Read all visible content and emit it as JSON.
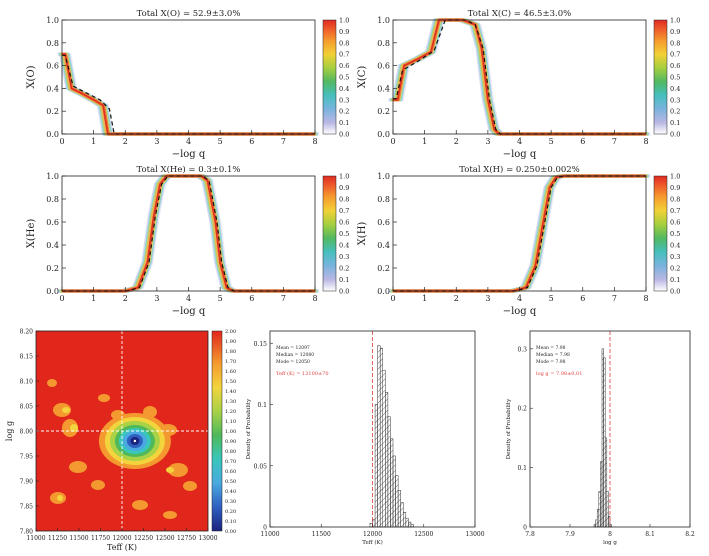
{
  "colorbar_ticks": [
    "0.0",
    "0.1",
    "0.2",
    "0.3",
    "0.4",
    "0.5",
    "0.6",
    "0.7",
    "0.8",
    "0.9",
    "1.0"
  ],
  "chart_data": [
    {
      "type": "line",
      "id": "xo",
      "title": "Total X(O) = 52.9±3.0%",
      "xlabel": "−log q",
      "ylabel": "X(O)",
      "xlim": [
        0,
        8
      ],
      "ylim": [
        0,
        1
      ],
      "xticks": [
        "0",
        "1",
        "2",
        "3",
        "4",
        "5",
        "6",
        "7",
        "8"
      ],
      "yticks": [
        "0.0",
        "0.2",
        "0.4",
        "0.6",
        "0.8",
        "1.0"
      ],
      "best_fit": [
        [
          0,
          0.7
        ],
        [
          0.1,
          0.7
        ],
        [
          0.3,
          0.4
        ],
        [
          0.6,
          0.36
        ],
        [
          1.0,
          0.3
        ],
        [
          1.3,
          0.25
        ],
        [
          1.45,
          0.0
        ],
        [
          8,
          0.0
        ]
      ],
      "reference": [
        [
          0,
          0.69
        ],
        [
          0.1,
          0.69
        ],
        [
          0.35,
          0.42
        ],
        [
          0.7,
          0.37
        ],
        [
          1.2,
          0.3
        ],
        [
          1.5,
          0.22
        ],
        [
          1.65,
          0.0
        ],
        [
          8,
          0.0
        ]
      ]
    },
    {
      "type": "line",
      "id": "xc",
      "title": "Total X(C) = 46.5±3.0%",
      "xlabel": "−log q",
      "ylabel": "X(C)",
      "xlim": [
        0,
        8
      ],
      "ylim": [
        0,
        1
      ],
      "xticks": [
        "0",
        "1",
        "2",
        "3",
        "4",
        "5",
        "6",
        "7",
        "8"
      ],
      "yticks": [
        "0.0",
        "0.2",
        "0.4",
        "0.6",
        "0.8",
        "1.0"
      ],
      "best_fit": [
        [
          0,
          0.3
        ],
        [
          0.15,
          0.3
        ],
        [
          0.35,
          0.6
        ],
        [
          0.8,
          0.66
        ],
        [
          1.2,
          0.72
        ],
        [
          1.45,
          1.0
        ],
        [
          2.2,
          1.0
        ],
        [
          2.6,
          0.96
        ],
        [
          2.8,
          0.75
        ],
        [
          3.0,
          0.3
        ],
        [
          3.2,
          0.04
        ],
        [
          3.35,
          0.0
        ],
        [
          8,
          0.0
        ]
      ],
      "reference": [
        [
          0,
          0.31
        ],
        [
          0.1,
          0.31
        ],
        [
          0.3,
          0.56
        ],
        [
          0.8,
          0.64
        ],
        [
          1.3,
          0.73
        ],
        [
          1.65,
          1.0
        ],
        [
          2.3,
          1.0
        ],
        [
          2.6,
          0.96
        ],
        [
          2.85,
          0.75
        ],
        [
          3.05,
          0.3
        ],
        [
          3.25,
          0.04
        ],
        [
          3.4,
          0.0
        ],
        [
          8,
          0.0
        ]
      ]
    },
    {
      "type": "line",
      "id": "xhe",
      "title": "Total X(He) = 0.3±0.1%",
      "xlabel": "−log q",
      "ylabel": "X(He)",
      "xlim": [
        0,
        8
      ],
      "ylim": [
        0,
        1
      ],
      "xticks": [
        "0",
        "1",
        "2",
        "3",
        "4",
        "5",
        "6",
        "7",
        "8"
      ],
      "yticks": [
        "0.0",
        "0.2",
        "0.4",
        "0.6",
        "0.8",
        "1.0"
      ],
      "best_fit": [
        [
          0,
          0.0
        ],
        [
          2.0,
          0.0
        ],
        [
          2.4,
          0.03
        ],
        [
          2.7,
          0.25
        ],
        [
          2.9,
          0.65
        ],
        [
          3.1,
          0.93
        ],
        [
          3.3,
          1.0
        ],
        [
          4.4,
          1.0
        ],
        [
          4.6,
          0.96
        ],
        [
          4.85,
          0.6
        ],
        [
          5.0,
          0.25
        ],
        [
          5.2,
          0.03
        ],
        [
          5.4,
          0.0
        ],
        [
          8,
          0.0
        ]
      ],
      "reference": [
        [
          0,
          0.0
        ],
        [
          2.05,
          0.0
        ],
        [
          2.45,
          0.03
        ],
        [
          2.75,
          0.25
        ],
        [
          2.95,
          0.65
        ],
        [
          3.15,
          0.93
        ],
        [
          3.35,
          1.0
        ],
        [
          4.45,
          1.0
        ],
        [
          4.65,
          0.96
        ],
        [
          4.9,
          0.6
        ],
        [
          5.05,
          0.25
        ],
        [
          5.25,
          0.03
        ],
        [
          5.45,
          0.0
        ],
        [
          8,
          0.0
        ]
      ]
    },
    {
      "type": "line",
      "id": "xh",
      "title": "Total X(H) = 0.250±0.002%",
      "xlabel": "−log q",
      "ylabel": "X(H)",
      "xlim": [
        0,
        8
      ],
      "ylim": [
        0,
        1
      ],
      "xticks": [
        "0",
        "1",
        "2",
        "3",
        "4",
        "5",
        "6",
        "7",
        "8"
      ],
      "yticks": [
        "0.0",
        "0.2",
        "0.4",
        "0.6",
        "0.8",
        "1.0"
      ],
      "best_fit": [
        [
          0,
          0.0
        ],
        [
          3.8,
          0.0
        ],
        [
          4.2,
          0.03
        ],
        [
          4.5,
          0.22
        ],
        [
          4.75,
          0.6
        ],
        [
          4.95,
          0.9
        ],
        [
          5.15,
          0.99
        ],
        [
          5.4,
          1.0
        ],
        [
          8,
          1.0
        ]
      ],
      "reference": [
        [
          0,
          0.0
        ],
        [
          3.85,
          0.0
        ],
        [
          4.25,
          0.03
        ],
        [
          4.55,
          0.22
        ],
        [
          4.8,
          0.6
        ],
        [
          5.0,
          0.9
        ],
        [
          5.2,
          0.99
        ],
        [
          5.45,
          1.0
        ],
        [
          8,
          1.0
        ]
      ]
    },
    {
      "type": "heatmap",
      "id": "chi2map",
      "xlabel": "Teff (K)",
      "ylabel": "log g",
      "xlim": [
        11000,
        13000
      ],
      "ylim": [
        7.8,
        8.2
      ],
      "xticks": [
        "11000",
        "11250",
        "11500",
        "11750",
        "12000",
        "12250",
        "12500",
        "12750",
        "13000"
      ],
      "yticks": [
        "7.80",
        "7.85",
        "7.90",
        "7.95",
        "8.00",
        "8.05",
        "8.10",
        "8.15",
        "8.20"
      ],
      "colorbar_ticks": [
        "0.00",
        "0.10",
        "0.20",
        "0.30",
        "0.40",
        "0.50",
        "0.60",
        "0.70",
        "0.80",
        "0.90",
        "1.00",
        "1.10",
        "1.20",
        "1.30",
        "1.40",
        "1.50",
        "1.60",
        "1.70",
        "1.80",
        "1.90",
        "2.00"
      ],
      "crosshair_x": 12000,
      "crosshair_y": 8.0,
      "minimum": [
        12150,
        7.98
      ]
    },
    {
      "type": "bar",
      "id": "teffhist",
      "xlabel": "Teff (K)",
      "ylabel": "Density of Probability",
      "xlim": [
        11000,
        13000
      ],
      "ylim": [
        0,
        0.16
      ],
      "xticks": [
        "11000",
        "11500",
        "12000",
        "12500",
        "13000"
      ],
      "yticks": [
        "0",
        "0.05",
        "0.1",
        "0.15"
      ],
      "stats": [
        "Mean    = 12097",
        "Median  = 12080",
        "Mode    = 12050"
      ],
      "result": "Teff (K) = 12100±70",
      "bin_width": 25,
      "bins_start": 11975,
      "values": [
        0.003,
        0.006,
        0.1,
        0.148,
        0.146,
        0.128,
        0.11,
        0.09,
        0.072,
        0.058,
        0.042,
        0.03,
        0.02,
        0.012,
        0.007,
        0.004,
        0.002
      ],
      "marker": 12000
    },
    {
      "type": "bar",
      "id": "logghist",
      "xlabel": "log g",
      "ylabel": "Density of Probability",
      "xlim": [
        7.8,
        8.2
      ],
      "ylim": [
        0,
        0.33
      ],
      "xticks": [
        "7.8",
        "7.9",
        "8",
        "8.1",
        "8.2"
      ],
      "yticks": [
        "0",
        "0.1",
        "0.2",
        "0.3"
      ],
      "stats": [
        "Mean    = 7.98",
        "Median  = 7.98",
        "Mode    = 7.98"
      ],
      "result": "log g = 7.98±0.01",
      "bin_width": 0.004,
      "bins_start": 7.96,
      "values": [
        0.004,
        0.012,
        0.03,
        0.06,
        0.11,
        0.3,
        0.285,
        0.15,
        0.06,
        0.018,
        0.004
      ],
      "marker": 8.0
    }
  ]
}
